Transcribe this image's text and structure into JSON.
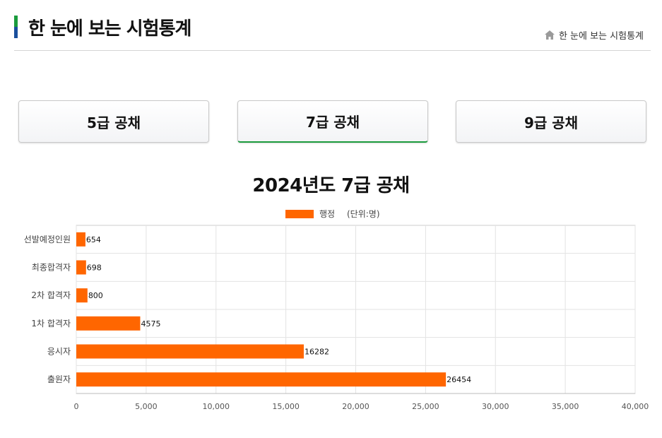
{
  "header": {
    "title": "한 눈에 보는 시험통계",
    "breadcrumb": "한 눈에 보는 시험통계",
    "home_icon": "home-icon"
  },
  "tabs": [
    {
      "label": "5급 공채",
      "active": false
    },
    {
      "label": "7급 공채",
      "active": true
    },
    {
      "label": "9급 공채",
      "active": false
    }
  ],
  "colors": {
    "bar": "#ff6600",
    "active_tab_underline": "#1a9b3c",
    "title_accent_top": "#1a9b3c",
    "title_accent_bottom": "#1a4f9c"
  },
  "chart_data": {
    "type": "bar",
    "orientation": "horizontal",
    "title": "2024년도 7급 공채",
    "unit_note": "(단위:명)",
    "categories": [
      "선발예정인원",
      "최종합격자",
      "2차 합격자",
      "1차 합격자",
      "응시자",
      "출원자"
    ],
    "series": [
      {
        "name": "행정",
        "values": [
          654,
          698,
          800,
          4575,
          16282,
          26454
        ]
      }
    ],
    "xlim": [
      0,
      40000
    ],
    "x_ticks": [
      0,
      5000,
      10000,
      15000,
      20000,
      25000,
      30000,
      35000,
      40000
    ],
    "x_tick_labels": [
      "0",
      "5,000",
      "10,000",
      "15,000",
      "20,000",
      "25,000",
      "30,000",
      "35,000",
      "40,000"
    ],
    "grid": true,
    "legend_position": "top-center"
  }
}
